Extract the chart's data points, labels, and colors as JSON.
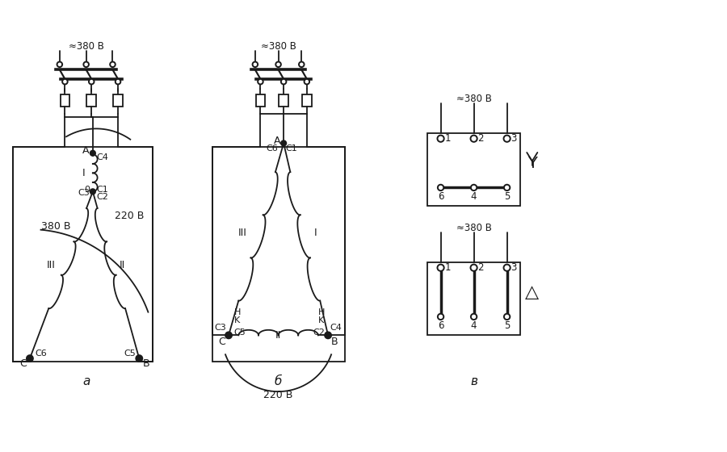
{
  "bg_color": "#ffffff",
  "lc": "#1a1a1a",
  "lw": 1.3,
  "voltage_380": "≈380 В",
  "voltage_220": "220 В",
  "voltage_380b": "380 В",
  "label_a": "а",
  "label_b": "б",
  "label_v": "в",
  "star_sym": "ˤ",
  "delta_sym": "△"
}
